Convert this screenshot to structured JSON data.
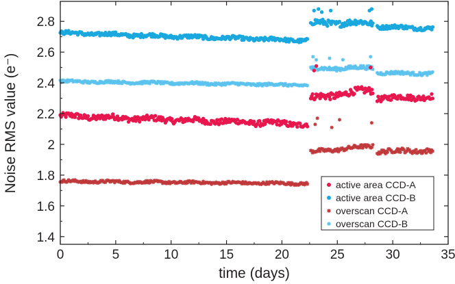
{
  "chart_data": {
    "type": "scatter",
    "xlabel": "time (days)",
    "ylabel": "Noise RMS value (e⁻)",
    "xlim": [
      0,
      35
    ],
    "ylim": [
      1.35,
      2.93
    ],
    "x_ticks": [
      "0",
      "5",
      "10",
      "15",
      "20",
      "25",
      "30",
      "35"
    ],
    "y_ticks": [
      "1.4",
      "1.6",
      "1.8",
      "2",
      "2.2",
      "2.4",
      "2.6",
      "2.8"
    ],
    "legend_position": "bottom-right",
    "series": [
      {
        "name": "active area CCD-A",
        "marker": "dot",
        "color": "#e8174e",
        "segments": [
          {
            "x": [
              0.0,
              22.3
            ],
            "y": [
              2.185,
              2.13
            ],
            "noise": 0.018
          },
          {
            "x": [
              22.6,
              28.2
            ],
            "y": [
              2.3,
              2.355
            ],
            "noise": 0.022
          },
          {
            "x": [
              28.6,
              33.6
            ],
            "y": [
              2.3,
              2.31
            ],
            "noise": 0.018
          }
        ]
      },
      {
        "name": "active area CCD-B",
        "marker": "dot",
        "color": "#1aa8de",
        "segments": [
          {
            "x": [
              0.0,
              22.3
            ],
            "y": [
              2.725,
              2.675
            ],
            "noise": 0.012
          },
          {
            "x": [
              22.6,
              28.2
            ],
            "y": [
              2.79,
              2.79
            ],
            "noise": 0.02
          },
          {
            "x": [
              28.6,
              33.6
            ],
            "y": [
              2.765,
              2.755
            ],
            "noise": 0.012
          }
        ]
      },
      {
        "name": "overscan CCD-A",
        "marker": "star",
        "color": "#c0393b",
        "segments": [
          {
            "x": [
              0.0,
              22.3
            ],
            "y": [
              1.76,
              1.745
            ],
            "noise": 0.008
          },
          {
            "x": [
              22.6,
              28.2
            ],
            "y": [
              1.95,
              1.99
            ],
            "noise": 0.012
          },
          {
            "x": [
              28.6,
              33.6
            ],
            "y": [
              1.955,
              1.96
            ],
            "noise": 0.015
          }
        ]
      },
      {
        "name": "overscan CCD-B",
        "marker": "star",
        "color": "#5cc2ee",
        "segments": [
          {
            "x": [
              0.0,
              22.3
            ],
            "y": [
              2.41,
              2.385
            ],
            "noise": 0.008
          },
          {
            "x": [
              22.6,
              28.2
            ],
            "y": [
              2.49,
              2.5
            ],
            "noise": 0.012
          },
          {
            "x": [
              28.6,
              33.6
            ],
            "y": [
              2.465,
              2.46
            ],
            "noise": 0.01
          }
        ]
      }
    ],
    "outliers": [
      {
        "series": "overscan CCD-A",
        "x": [
          23.0,
          23.2,
          24.5,
          25.2,
          28.1
        ],
        "y": [
          2.13,
          2.17,
          2.11,
          2.16,
          2.14
        ]
      },
      {
        "series": "overscan CCD-B",
        "x": [
          22.8,
          23.1,
          24.3,
          25.5,
          28.0
        ],
        "y": [
          2.57,
          2.55,
          2.56,
          2.55,
          2.57
        ]
      },
      {
        "series": "active area CCD-B",
        "x": [
          22.9,
          23.3,
          23.6,
          24.4,
          27.9,
          28.1
        ],
        "y": [
          2.87,
          2.88,
          2.86,
          2.87,
          2.87,
          2.88
        ]
      },
      {
        "series": "active area CCD-A",
        "x": [
          22.9,
          23.1,
          28.0
        ],
        "y": [
          2.48,
          2.51,
          2.5
        ]
      }
    ]
  }
}
